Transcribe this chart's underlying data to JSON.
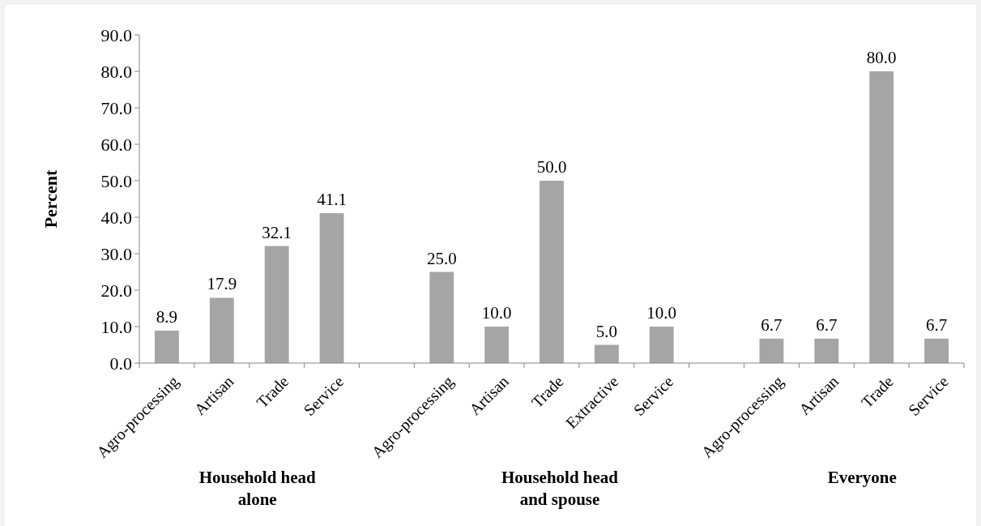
{
  "chart_data": {
    "type": "bar",
    "ylabel": "Percent",
    "categories": [
      "Agro-processing",
      "Artisan",
      "Trade",
      "Service",
      null,
      "Agro-processing",
      "Artisan",
      "Trade",
      "Extractive",
      "Service",
      null,
      "Agro-processing",
      "Artisan",
      "Trade",
      "Service"
    ],
    "values": [
      8.9,
      17.9,
      32.1,
      41.1,
      null,
      25.0,
      10.0,
      50.0,
      5.0,
      10.0,
      null,
      6.7,
      6.7,
      80.0,
      6.7
    ],
    "value_labels": [
      "8.9",
      "17.9",
      "32.1",
      "41.1",
      null,
      "25.0",
      "10.0",
      "50.0",
      "5.0",
      "10.0",
      null,
      "6.7",
      "6.7",
      "80.0",
      "6.7"
    ],
    "color": "#a5a5a5",
    "ylim": [
      0,
      90
    ],
    "yticks": [
      {
        "value": 0,
        "label": "0.0"
      },
      {
        "value": 10,
        "label": "10.0"
      },
      {
        "value": 20,
        "label": "20.0"
      },
      {
        "value": 30,
        "label": "30.0"
      },
      {
        "value": 40,
        "label": "40.0"
      },
      {
        "value": 50,
        "label": "50.0"
      },
      {
        "value": 60,
        "label": "60.0"
      },
      {
        "value": 70,
        "label": "70.0"
      },
      {
        "value": 80,
        "label": "80.0"
      },
      {
        "value": 90,
        "label": "90.0"
      }
    ],
    "annotations": [
      "Household head alone",
      "Household head and spouse",
      "Everyone"
    ]
  }
}
